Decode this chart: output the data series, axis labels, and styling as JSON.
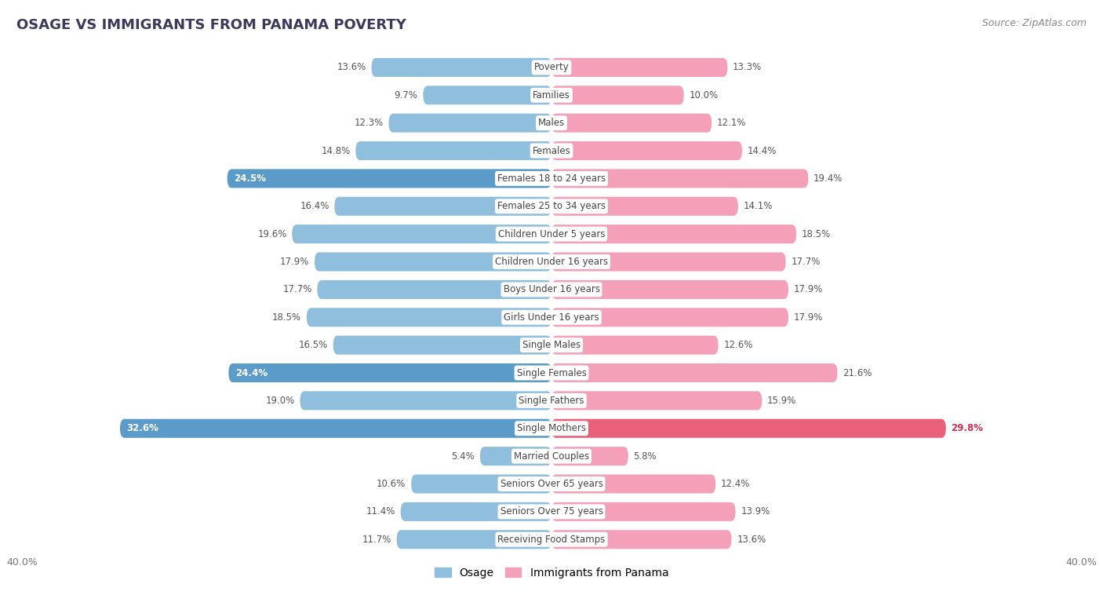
{
  "title": "Osage vs Immigrants from Panama Poverty",
  "source": "Source: ZipAtlas.com",
  "categories": [
    "Poverty",
    "Families",
    "Males",
    "Females",
    "Females 18 to 24 years",
    "Females 25 to 34 years",
    "Children Under 5 years",
    "Children Under 16 years",
    "Boys Under 16 years",
    "Girls Under 16 years",
    "Single Males",
    "Single Females",
    "Single Fathers",
    "Single Mothers",
    "Married Couples",
    "Seniors Over 65 years",
    "Seniors Over 75 years",
    "Receiving Food Stamps"
  ],
  "osage": [
    13.6,
    9.7,
    12.3,
    14.8,
    24.5,
    16.4,
    19.6,
    17.9,
    17.7,
    18.5,
    16.5,
    24.4,
    19.0,
    32.6,
    5.4,
    10.6,
    11.4,
    11.7
  ],
  "panama": [
    13.3,
    10.0,
    12.1,
    14.4,
    19.4,
    14.1,
    18.5,
    17.7,
    17.9,
    17.9,
    12.6,
    21.6,
    15.9,
    29.8,
    5.8,
    12.4,
    13.9,
    13.6
  ],
  "osage_color": "#90bedd",
  "panama_color": "#f4a0b8",
  "osage_highlight_indices": [
    4,
    11,
    13
  ],
  "panama_highlight_indices": [
    13
  ],
  "osage_highlight_color": "#5b9bc9",
  "panama_highlight_color": "#e8607a",
  "fig_bg": "#ffffff",
  "row_bg": "#f5f5f5",
  "row_gap_bg": "#e8e8e8",
  "xlim": 40.0,
  "legend_osage": "Osage",
  "legend_panama": "Immigrants from Panama",
  "title_color": "#3a3a5c",
  "label_color": "#555555",
  "value_color": "#555555",
  "source_color": "#888888"
}
